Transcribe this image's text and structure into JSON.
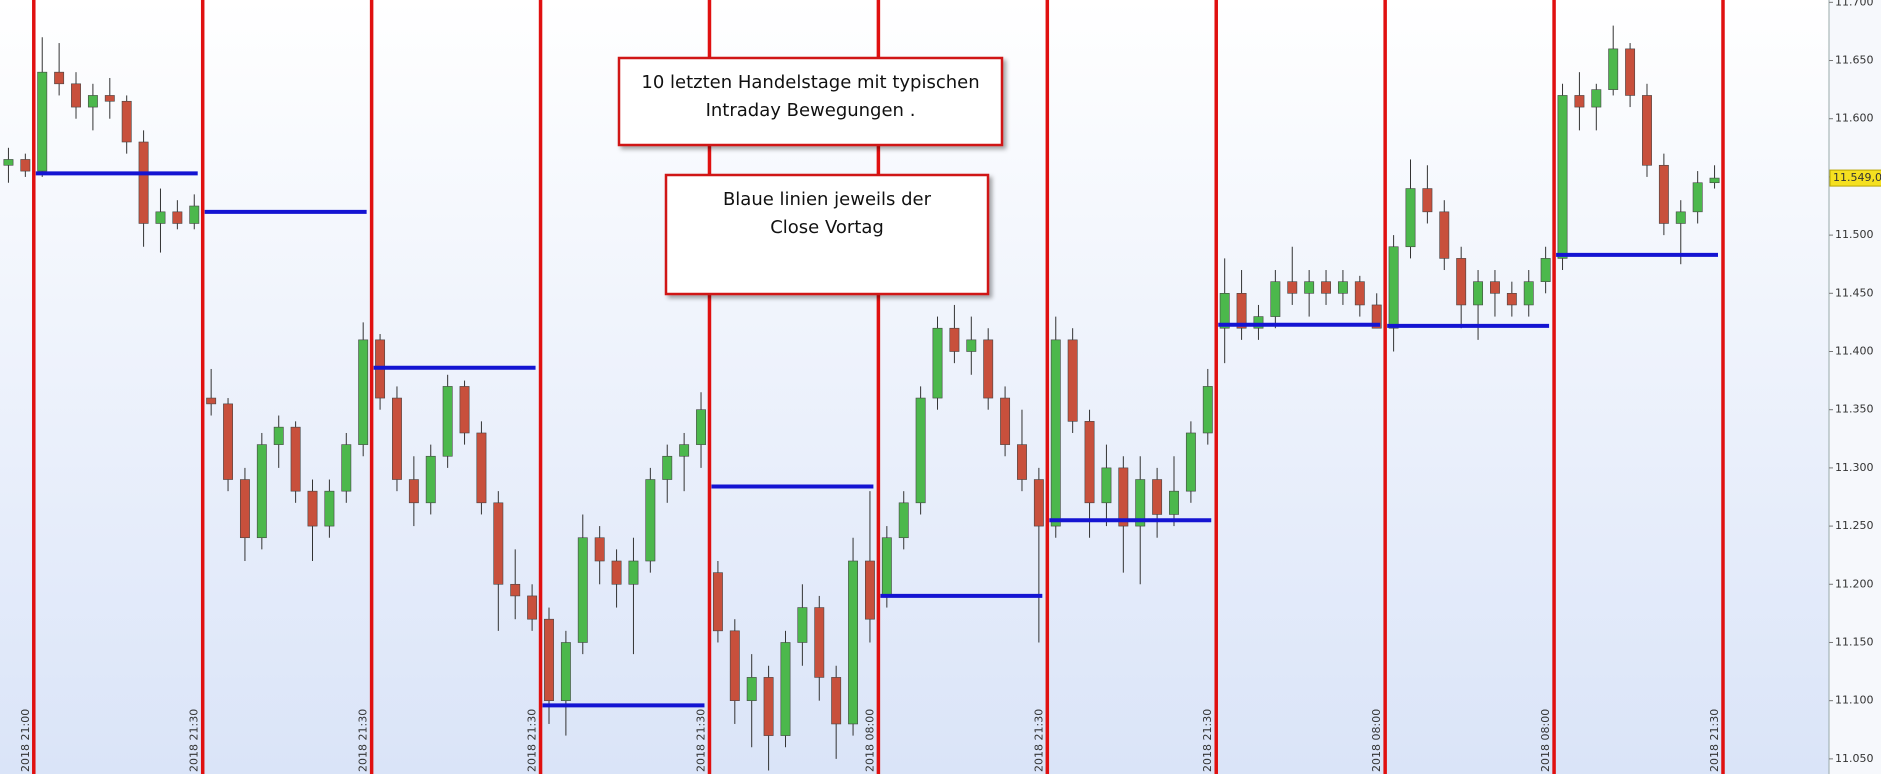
{
  "chart_data": {
    "type": "candlestick",
    "ylim": [
      11.037,
      11.702
    ],
    "yticks": [
      {
        "value": 11.05,
        "label": "11.050"
      },
      {
        "value": 11.1,
        "label": "11.100"
      },
      {
        "value": 11.15,
        "label": "11.150"
      },
      {
        "value": 11.2,
        "label": "11.200"
      },
      {
        "value": 11.25,
        "label": "11.250"
      },
      {
        "value": 11.3,
        "label": "11.300"
      },
      {
        "value": 11.35,
        "label": "11.350"
      },
      {
        "value": 11.4,
        "label": "11.400"
      },
      {
        "value": 11.45,
        "label": "11.450"
      },
      {
        "value": 11.5,
        "label": "11.500"
      },
      {
        "value": 11.55,
        "label": "11.550"
      },
      {
        "value": 11.6,
        "label": "11.600"
      },
      {
        "value": 11.65,
        "label": "11.650"
      },
      {
        "value": 11.7,
        "label": "11.700"
      }
    ],
    "up_color": "#4cb84c",
    "down_color": "#c8503c",
    "separator_color": "#e01010",
    "prev_close_color": "#1414d2",
    "last_price": {
      "value": 11.549,
      "label": "11.549,0"
    },
    "annotations": [
      {
        "lines": [
          "10 letzten Handelstage mit typischen",
          "Intraday Bewegungen ."
        ]
      },
      {
        "lines": [
          "Blaue linien jeweils der",
          "Close Vortag"
        ]
      }
    ],
    "sessions": [
      {
        "label": "2018 21:00",
        "open": [
          11.56,
          11.565
        ],
        "high": [
          11.575,
          11.57
        ],
        "low": [
          11.545,
          11.55
        ],
        "close": [
          11.565,
          11.555
        ]
      },
      {
        "label": "2018 21:30",
        "prev_close": 11.553,
        "open": [
          11.555,
          11.64,
          11.63,
          11.61,
          11.62,
          11.615,
          11.58,
          11.51,
          11.52,
          11.51
        ],
        "high": [
          11.67,
          11.665,
          11.64,
          11.63,
          11.635,
          11.62,
          11.59,
          11.54,
          11.53,
          11.535
        ],
        "low": [
          11.55,
          11.62,
          11.6,
          11.59,
          11.6,
          11.57,
          11.49,
          11.485,
          11.505,
          11.505
        ],
        "close": [
          11.64,
          11.63,
          11.61,
          11.62,
          11.615,
          11.58,
          11.51,
          11.52,
          11.51,
          11.525
        ]
      },
      {
        "label": "2018 21:30",
        "prev_close": 11.52,
        "open": [
          11.36,
          11.355,
          11.29,
          11.24,
          11.32,
          11.335,
          11.28,
          11.25,
          11.28,
          11.32
        ],
        "high": [
          11.385,
          11.36,
          11.3,
          11.33,
          11.345,
          11.34,
          11.29,
          11.29,
          11.33,
          11.425
        ],
        "low": [
          11.345,
          11.28,
          11.22,
          11.23,
          11.3,
          11.27,
          11.22,
          11.24,
          11.27,
          11.31
        ],
        "close": [
          11.355,
          11.29,
          11.24,
          11.32,
          11.335,
          11.28,
          11.25,
          11.28,
          11.32,
          11.41
        ]
      },
      {
        "label": "2018 21:30",
        "prev_close": 11.386,
        "open": [
          11.41,
          11.36,
          11.29,
          11.27,
          11.31,
          11.37,
          11.33,
          11.27,
          11.2,
          11.19
        ],
        "high": [
          11.415,
          11.37,
          11.31,
          11.32,
          11.38,
          11.375,
          11.34,
          11.28,
          11.23,
          11.2
        ],
        "low": [
          11.35,
          11.28,
          11.25,
          11.26,
          11.3,
          11.32,
          11.26,
          11.16,
          11.17,
          11.16
        ],
        "close": [
          11.36,
          11.29,
          11.27,
          11.31,
          11.37,
          11.33,
          11.27,
          11.2,
          11.19,
          11.17
        ]
      },
      {
        "label": "2018 21:30",
        "prev_close": 11.096,
        "open": [
          11.17,
          11.1,
          11.15,
          11.24,
          11.22,
          11.2,
          11.22,
          11.29,
          11.31,
          11.32
        ],
        "high": [
          11.18,
          11.16,
          11.26,
          11.25,
          11.23,
          11.24,
          11.3,
          11.32,
          11.33,
          11.365
        ],
        "low": [
          11.08,
          11.07,
          11.14,
          11.2,
          11.18,
          11.14,
          11.21,
          11.27,
          11.28,
          11.3
        ],
        "close": [
          11.1,
          11.15,
          11.24,
          11.22,
          11.2,
          11.22,
          11.29,
          11.31,
          11.32,
          11.35
        ]
      },
      {
        "label": "2018 08:00",
        "prev_close": 11.284,
        "open": [
          11.21,
          11.16,
          11.1,
          11.12,
          11.07,
          11.15,
          11.18,
          11.12,
          11.08,
          11.22
        ],
        "high": [
          11.22,
          11.17,
          11.14,
          11.13,
          11.16,
          11.2,
          11.19,
          11.13,
          11.24,
          11.28
        ],
        "low": [
          11.15,
          11.08,
          11.06,
          11.04,
          11.06,
          11.13,
          11.1,
          11.05,
          11.07,
          11.15
        ],
        "close": [
          11.16,
          11.1,
          11.12,
          11.07,
          11.15,
          11.18,
          11.12,
          11.08,
          11.22,
          11.17
        ]
      },
      {
        "label": "2018 21:30",
        "prev_close": 11.19,
        "open": [
          11.19,
          11.24,
          11.27,
          11.36,
          11.42,
          11.4,
          11.41,
          11.36,
          11.32,
          11.29
        ],
        "high": [
          11.25,
          11.28,
          11.37,
          11.43,
          11.44,
          11.43,
          11.42,
          11.37,
          11.35,
          11.3
        ],
        "low": [
          11.18,
          11.23,
          11.26,
          11.35,
          11.39,
          11.38,
          11.35,
          11.31,
          11.28,
          11.15
        ],
        "close": [
          11.24,
          11.27,
          11.36,
          11.42,
          11.4,
          11.41,
          11.36,
          11.32,
          11.29,
          11.25
        ]
      },
      {
        "label": "2018 21:30",
        "prev_close": 11.255,
        "open": [
          11.25,
          11.41,
          11.34,
          11.27,
          11.3,
          11.25,
          11.29,
          11.26,
          11.28,
          11.33
        ],
        "high": [
          11.43,
          11.42,
          11.35,
          11.32,
          11.31,
          11.31,
          11.3,
          11.31,
          11.34,
          11.385
        ],
        "low": [
          11.24,
          11.33,
          11.24,
          11.25,
          11.21,
          11.2,
          11.24,
          11.25,
          11.27,
          11.32
        ],
        "close": [
          11.41,
          11.34,
          11.27,
          11.3,
          11.25,
          11.29,
          11.26,
          11.28,
          11.33,
          11.37
        ]
      },
      {
        "label": "2018 08:00",
        "prev_close": 11.423,
        "open": [
          11.42,
          11.45,
          11.42,
          11.43,
          11.46,
          11.45,
          11.46,
          11.45,
          11.46,
          11.44
        ],
        "high": [
          11.48,
          11.47,
          11.44,
          11.47,
          11.49,
          11.47,
          11.47,
          11.47,
          11.465,
          11.45
        ],
        "low": [
          11.39,
          11.41,
          11.41,
          11.42,
          11.44,
          11.43,
          11.44,
          11.44,
          11.43,
          11.42
        ],
        "close": [
          11.45,
          11.42,
          11.43,
          11.46,
          11.45,
          11.46,
          11.45,
          11.46,
          11.44,
          11.42
        ]
      },
      {
        "label": "2018 08:00",
        "prev_close": 11.422,
        "open": [
          11.42,
          11.49,
          11.54,
          11.52,
          11.48,
          11.44,
          11.46,
          11.45,
          11.44,
          11.46
        ],
        "high": [
          11.5,
          11.565,
          11.56,
          11.53,
          11.49,
          11.47,
          11.47,
          11.46,
          11.47,
          11.49
        ],
        "low": [
          11.4,
          11.48,
          11.51,
          11.47,
          11.42,
          11.41,
          11.43,
          11.43,
          11.43,
          11.45
        ],
        "close": [
          11.49,
          11.54,
          11.52,
          11.48,
          11.44,
          11.46,
          11.45,
          11.44,
          11.46,
          11.48
        ]
      },
      {
        "label": "2018 21:30",
        "prev_close": 11.483,
        "open": [
          11.48,
          11.62,
          11.61,
          11.625,
          11.66,
          11.62,
          11.56,
          11.51,
          11.52,
          11.545
        ],
        "high": [
          11.63,
          11.64,
          11.63,
          11.68,
          11.665,
          11.63,
          11.57,
          11.53,
          11.555,
          11.56
        ],
        "low": [
          11.47,
          11.59,
          11.59,
          11.62,
          11.61,
          11.55,
          11.5,
          11.475,
          11.51,
          11.54
        ],
        "close": [
          11.62,
          11.61,
          11.625,
          11.66,
          11.62,
          11.56,
          11.51,
          11.52,
          11.545,
          11.549
        ]
      }
    ]
  }
}
